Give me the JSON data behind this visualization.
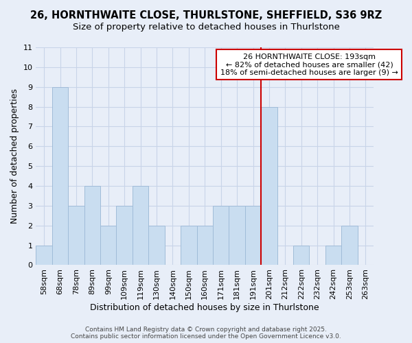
{
  "title1": "26, HORNTHWAITE CLOSE, THURLSTONE, SHEFFIELD, S36 9RZ",
  "title2": "Size of property relative to detached houses in Thurlstone",
  "xlabel": "Distribution of detached houses by size in Thurlstone",
  "ylabel": "Number of detached properties",
  "categories": [
    "58sqm",
    "68sqm",
    "78sqm",
    "89sqm",
    "99sqm",
    "109sqm",
    "119sqm",
    "130sqm",
    "140sqm",
    "150sqm",
    "160sqm",
    "171sqm",
    "181sqm",
    "191sqm",
    "201sqm",
    "212sqm",
    "222sqm",
    "232sqm",
    "242sqm",
    "253sqm",
    "263sqm"
  ],
  "values": [
    1,
    9,
    3,
    4,
    2,
    3,
    4,
    2,
    0,
    2,
    2,
    3,
    3,
    3,
    8,
    0,
    1,
    0,
    1,
    2,
    0
  ],
  "bar_color": "#c9ddf0",
  "bar_edgecolor": "#a0bcd8",
  "vline_index": 14,
  "vline_color": "#cc0000",
  "annotation_text": "26 HORNTHWAITE CLOSE: 193sqm\n← 82% of detached houses are smaller (42)\n18% of semi-detached houses are larger (9) →",
  "annotation_box_edgecolor": "#cc0000",
  "annotation_box_facecolor": "#ffffff",
  "ylim": [
    0,
    11
  ],
  "yticks": [
    0,
    1,
    2,
    3,
    4,
    5,
    6,
    7,
    8,
    9,
    10,
    11
  ],
  "grid_color": "#c8d4e8",
  "bg_color": "#e8eef8",
  "footer_text": "Contains HM Land Registry data © Crown copyright and database right 2025.\nContains public sector information licensed under the Open Government Licence v3.0.",
  "title1_fontsize": 10.5,
  "title2_fontsize": 9.5,
  "xlabel_fontsize": 9,
  "ylabel_fontsize": 9,
  "tick_fontsize": 8,
  "annotation_fontsize": 8,
  "footer_fontsize": 6.5
}
